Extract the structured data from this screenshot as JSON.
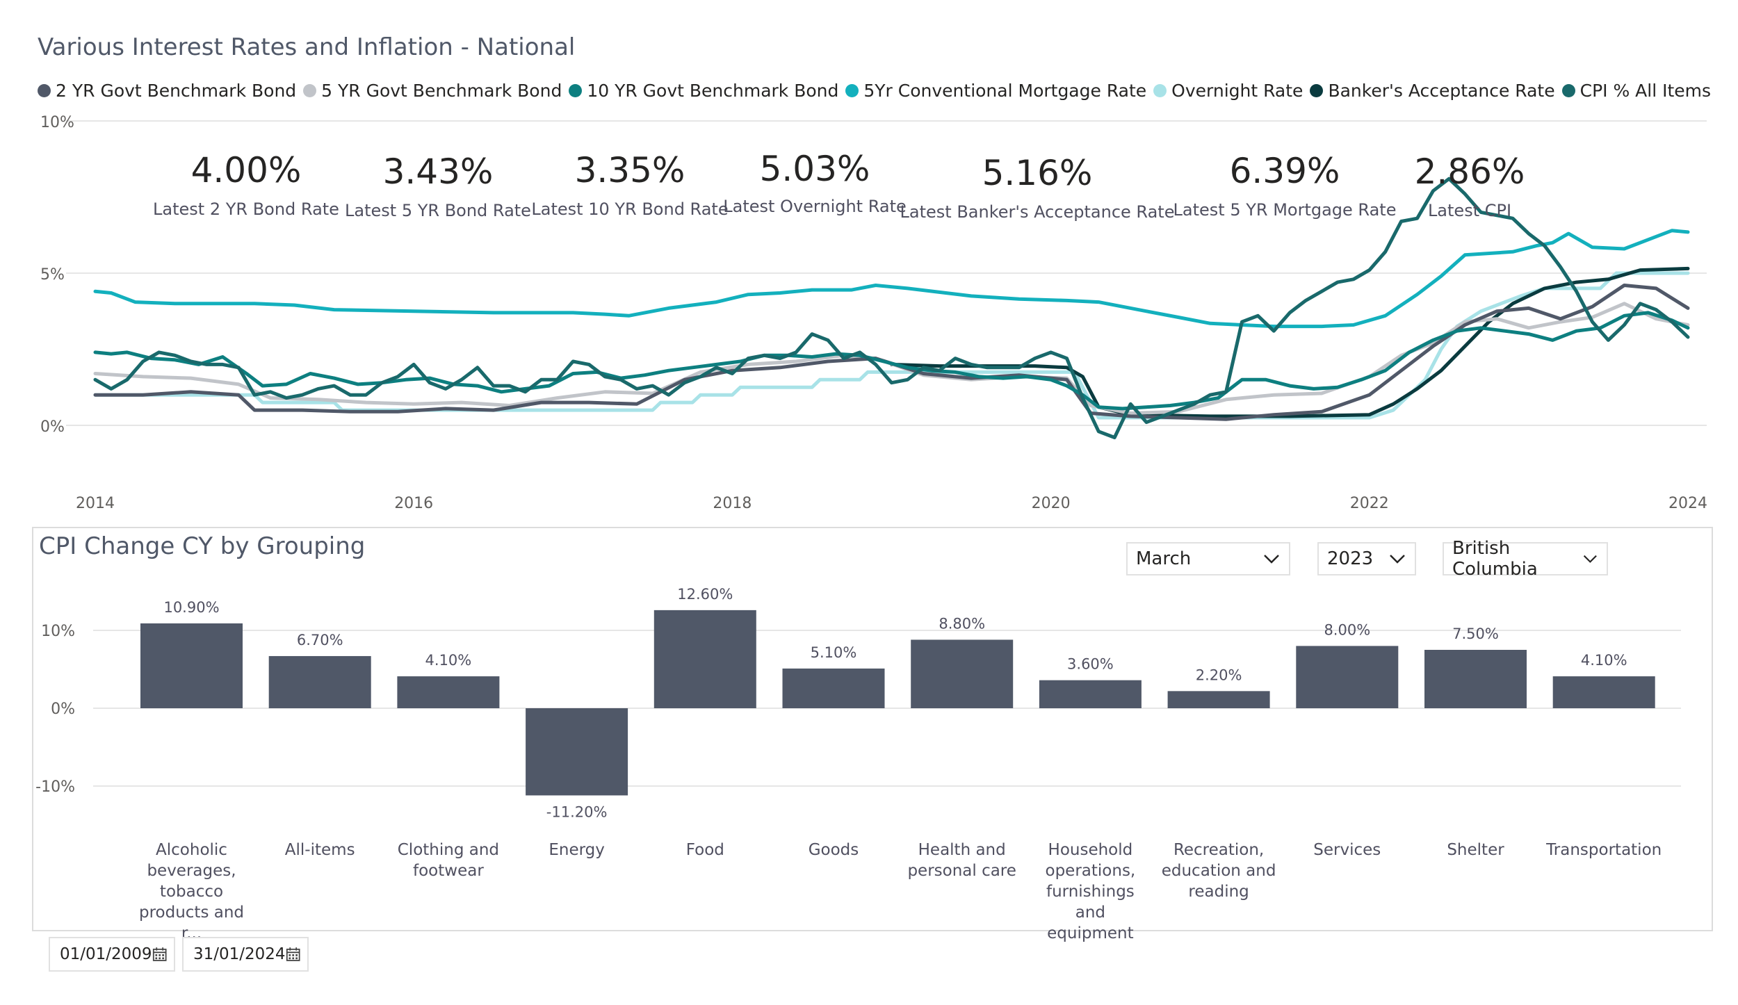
{
  "top_title": "Various Interest Rates and Inflation - National",
  "legend": [
    {
      "name": "2 YR Govt Benchmark Bond",
      "color": "#505868"
    },
    {
      "name": "5 YR Govt Benchmark Bond",
      "color": "#c1c4c9"
    },
    {
      "name": "10 YR Govt Benchmark Bond",
      "color": "#0d7f80"
    },
    {
      "name": "5Yr Conventional Mortgage Rate",
      "color": "#13b0bd"
    },
    {
      "name": "Overnight Rate",
      "color": "#a8e2e7"
    },
    {
      "name": "Banker's Acceptance Rate",
      "color": "#0a3b3f"
    },
    {
      "name": "CPI % All Items",
      "color": "#19696b"
    }
  ],
  "cards": [
    {
      "value": "4.00%",
      "label": "Latest 2 YR Bond Rate"
    },
    {
      "value": "3.43%",
      "label": "Latest 5 YR Bond Rate"
    },
    {
      "value": "3.35%",
      "label": "Latest 10 YR Bond Rate"
    },
    {
      "value": "5.03%",
      "label": "Latest Overnight Rate"
    },
    {
      "value": "5.16%",
      "label": "Latest Banker's Acceptance Rate"
    },
    {
      "value": "6.39%",
      "label": "Latest 5 YR Mortgage Rate"
    },
    {
      "value": "2.86%",
      "label": "Latest CPI"
    }
  ],
  "filters": {
    "month": "March",
    "year": "2023",
    "region": "British Columbia"
  },
  "date_range": {
    "start": "01/01/2009",
    "end": "31/01/2024"
  },
  "bottom_title": "CPI Change CY by Grouping",
  "chart_data": [
    {
      "type": "line",
      "title": "Various Interest Rates and Inflation - National",
      "x_ticks": [
        "2014",
        "2016",
        "2018",
        "2020",
        "2022",
        "2024"
      ],
      "y_ticks": [
        "0%",
        "5%",
        "10%"
      ],
      "ylim": [
        0,
        10
      ],
      "xlim": [
        2014.0,
        2024.0
      ],
      "grid": true,
      "legend_position": "top-left",
      "series": [
        {
          "name": "5Yr Conventional Mortgage Rate",
          "color": "#13b0bd",
          "width": 5,
          "x": [
            2014.0,
            2014.1,
            2014.25,
            2014.5,
            2014.75,
            2015.0,
            2015.25,
            2015.5,
            2016.0,
            2016.5,
            2017.0,
            2017.2,
            2017.35,
            2017.6,
            2017.9,
            2018.1,
            2018.3,
            2018.5,
            2018.75,
            2018.9,
            2019.1,
            2019.5,
            2019.8,
            2020.1,
            2020.3,
            2020.45,
            2020.6,
            2020.8,
            2021.0,
            2021.2,
            2021.4,
            2021.7,
            2021.9,
            2022.1,
            2022.3,
            2022.45,
            2022.6,
            2022.9,
            2023.05,
            2023.15,
            2023.25,
            2023.4,
            2023.6,
            2023.8,
            2023.9,
            2024.0
          ],
          "y": [
            4.4,
            4.35,
            4.05,
            4.0,
            4.0,
            4.0,
            3.95,
            3.8,
            3.75,
            3.7,
            3.7,
            3.65,
            3.6,
            3.85,
            4.05,
            4.3,
            4.35,
            4.45,
            4.45,
            4.6,
            4.5,
            4.25,
            4.15,
            4.1,
            4.05,
            3.9,
            3.75,
            3.55,
            3.35,
            3.3,
            3.25,
            3.25,
            3.3,
            3.6,
            4.3,
            4.9,
            5.6,
            5.7,
            5.9,
            6.0,
            6.3,
            5.85,
            5.8,
            6.2,
            6.4,
            6.35
          ]
        },
        {
          "name": "Overnight Rate",
          "color": "#a8e2e7",
          "width": 5,
          "x": [
            2014.0,
            2015.0,
            2015.05,
            2015.5,
            2015.55,
            2016.0,
            2017.0,
            2017.5,
            2017.55,
            2017.75,
            2017.8,
            2018.0,
            2018.05,
            2018.5,
            2018.55,
            2018.8,
            2018.85,
            2020.15,
            2020.2,
            2020.25,
            2020.3,
            2021.0,
            2022.0,
            2022.15,
            2022.25,
            2022.35,
            2022.45,
            2022.55,
            2022.7,
            2022.95,
            2023.1,
            2023.45,
            2023.55,
            2024.0
          ],
          "y": [
            1.0,
            1.0,
            0.75,
            0.75,
            0.5,
            0.5,
            0.5,
            0.5,
            0.75,
            0.75,
            1.0,
            1.0,
            1.25,
            1.25,
            1.5,
            1.5,
            1.75,
            1.75,
            1.25,
            0.75,
            0.25,
            0.25,
            0.25,
            0.5,
            1.0,
            1.5,
            2.5,
            3.25,
            3.75,
            4.25,
            4.5,
            4.5,
            5.0,
            5.0
          ]
        },
        {
          "name": "Banker's Acceptance Rate",
          "color": "#0a3b3f",
          "width": 5,
          "x": [
            2019.0,
            2019.3,
            2019.6,
            2019.9,
            2020.1,
            2020.2,
            2020.3,
            2020.5,
            2021.0,
            2021.5,
            2022.0,
            2022.15,
            2022.3,
            2022.45,
            2022.6,
            2022.75,
            2022.9,
            2023.1,
            2023.3,
            2023.5,
            2023.7,
            2024.0
          ],
          "y": [
            2.0,
            1.95,
            1.95,
            1.95,
            1.9,
            1.6,
            0.6,
            0.35,
            0.3,
            0.3,
            0.35,
            0.7,
            1.2,
            1.8,
            2.6,
            3.4,
            4.0,
            4.5,
            4.7,
            4.8,
            5.1,
            5.15
          ]
        },
        {
          "name": "5 YR Govt Benchmark Bond",
          "color": "#c1c4c9",
          "width": 5,
          "x": [
            2014.0,
            2014.3,
            2014.6,
            2014.9,
            2015.1,
            2015.4,
            2015.7,
            2016.0,
            2016.3,
            2016.6,
            2016.9,
            2017.2,
            2017.5,
            2017.8,
            2018.1,
            2018.4,
            2018.7,
            2018.9,
            2019.2,
            2019.5,
            2019.8,
            2020.1,
            2020.25,
            2020.5,
            2020.8,
            2021.1,
            2021.4,
            2021.7,
            2022.0,
            2022.2,
            2022.4,
            2022.6,
            2022.8,
            2023.0,
            2023.2,
            2023.4,
            2023.6,
            2023.8,
            2024.0
          ],
          "y": [
            1.7,
            1.6,
            1.55,
            1.35,
            0.9,
            0.85,
            0.75,
            0.7,
            0.75,
            0.65,
            0.9,
            1.1,
            1.05,
            1.75,
            2.0,
            2.1,
            2.3,
            2.2,
            1.65,
            1.5,
            1.6,
            1.55,
            0.65,
            0.4,
            0.45,
            0.85,
            1.0,
            1.05,
            1.6,
            2.3,
            2.7,
            3.4,
            3.5,
            3.2,
            3.4,
            3.55,
            4.0,
            3.5,
            3.3
          ]
        },
        {
          "name": "2 YR Govt Benchmark Bond",
          "color": "#505868",
          "width": 5,
          "x": [
            2014.0,
            2014.3,
            2014.6,
            2014.9,
            2015.0,
            2015.3,
            2015.6,
            2015.9,
            2016.2,
            2016.5,
            2016.8,
            2017.1,
            2017.4,
            2017.7,
            2018.0,
            2018.3,
            2018.6,
            2018.9,
            2019.2,
            2019.5,
            2019.8,
            2020.1,
            2020.25,
            2020.5,
            2020.8,
            2021.1,
            2021.4,
            2021.7,
            2022.0,
            2022.2,
            2022.4,
            2022.6,
            2022.8,
            2023.0,
            2023.2,
            2023.4,
            2023.6,
            2023.8,
            2024.0
          ],
          "y": [
            1.0,
            1.0,
            1.1,
            1.0,
            0.5,
            0.5,
            0.45,
            0.45,
            0.55,
            0.5,
            0.75,
            0.75,
            0.7,
            1.5,
            1.8,
            1.9,
            2.1,
            2.2,
            1.7,
            1.55,
            1.65,
            1.5,
            0.4,
            0.3,
            0.25,
            0.2,
            0.35,
            0.45,
            1.0,
            1.8,
            2.6,
            3.3,
            3.75,
            3.85,
            3.5,
            3.9,
            4.6,
            4.5,
            3.85
          ]
        },
        {
          "name": "10 YR Govt Benchmark Bond",
          "color": "#0d7f80",
          "width": 5,
          "x": [
            2014.0,
            2014.1,
            2014.2,
            2014.35,
            2014.5,
            2014.65,
            2014.8,
            2014.95,
            2015.05,
            2015.2,
            2015.35,
            2015.5,
            2015.65,
            2015.8,
            2015.95,
            2016.1,
            2016.25,
            2016.4,
            2016.55,
            2016.7,
            2016.85,
            2017.0,
            2017.15,
            2017.3,
            2017.45,
            2017.6,
            2017.75,
            2017.9,
            2018.05,
            2018.2,
            2018.35,
            2018.5,
            2018.65,
            2018.8,
            2018.95,
            2019.1,
            2019.25,
            2019.4,
            2019.55,
            2019.7,
            2019.85,
            2020.0,
            2020.1,
            2020.2,
            2020.3,
            2020.45,
            2020.6,
            2020.75,
            2020.9,
            2021.05,
            2021.2,
            2021.35,
            2021.5,
            2021.65,
            2021.8,
            2021.95,
            2022.1,
            2022.25,
            2022.4,
            2022.55,
            2022.7,
            2022.85,
            2023.0,
            2023.15,
            2023.3,
            2023.45,
            2023.6,
            2023.75,
            2023.9,
            2024.0
          ],
          "y": [
            2.4,
            2.35,
            2.4,
            2.2,
            2.15,
            2.0,
            2.25,
            1.7,
            1.3,
            1.35,
            1.7,
            1.55,
            1.35,
            1.4,
            1.5,
            1.55,
            1.35,
            1.3,
            1.1,
            1.2,
            1.3,
            1.7,
            1.75,
            1.55,
            1.65,
            1.8,
            1.9,
            2.0,
            2.1,
            2.3,
            2.3,
            2.25,
            2.35,
            2.3,
            2.1,
            1.9,
            1.8,
            1.75,
            1.6,
            1.55,
            1.6,
            1.5,
            1.3,
            1.0,
            0.6,
            0.55,
            0.6,
            0.65,
            0.75,
            0.9,
            1.5,
            1.5,
            1.3,
            1.2,
            1.25,
            1.5,
            1.8,
            2.4,
            2.8,
            3.1,
            3.2,
            3.1,
            3.0,
            2.8,
            3.1,
            3.2,
            3.6,
            3.7,
            3.45,
            3.2
          ]
        },
        {
          "name": "CPI % All Items",
          "color": "#19696b",
          "width": 5,
          "x": [
            2014.0,
            2014.1,
            2014.2,
            2014.3,
            2014.4,
            2014.5,
            2014.6,
            2014.7,
            2014.8,
            2014.9,
            2015.0,
            2015.1,
            2015.2,
            2015.3,
            2015.4,
            2015.5,
            2015.6,
            2015.7,
            2015.8,
            2015.9,
            2016.0,
            2016.1,
            2016.2,
            2016.3,
            2016.4,
            2016.5,
            2016.6,
            2016.7,
            2016.8,
            2016.9,
            2017.0,
            2017.1,
            2017.2,
            2017.3,
            2017.4,
            2017.5,
            2017.6,
            2017.7,
            2017.8,
            2017.9,
            2018.0,
            2018.1,
            2018.2,
            2018.3,
            2018.4,
            2018.5,
            2018.6,
            2018.7,
            2018.8,
            2018.9,
            2019.0,
            2019.1,
            2019.2,
            2019.3,
            2019.4,
            2019.5,
            2019.6,
            2019.7,
            2019.8,
            2019.9,
            2020.0,
            2020.1,
            2020.2,
            2020.3,
            2020.4,
            2020.5,
            2020.6,
            2020.7,
            2020.8,
            2020.9,
            2021.0,
            2021.1,
            2021.2,
            2021.3,
            2021.4,
            2021.5,
            2021.6,
            2021.7,
            2021.8,
            2021.9,
            2022.0,
            2022.1,
            2022.2,
            2022.3,
            2022.4,
            2022.5,
            2022.6,
            2022.7,
            2022.8,
            2022.9,
            2023.0,
            2023.1,
            2023.2,
            2023.3,
            2023.4,
            2023.5,
            2023.6,
            2023.7,
            2023.8,
            2023.9,
            2024.0
          ],
          "y": [
            1.5,
            1.2,
            1.5,
            2.1,
            2.4,
            2.3,
            2.1,
            2.0,
            2.0,
            1.9,
            1.0,
            1.1,
            0.9,
            1.0,
            1.2,
            1.3,
            1.0,
            1.0,
            1.4,
            1.6,
            2.0,
            1.4,
            1.2,
            1.5,
            1.9,
            1.3,
            1.3,
            1.1,
            1.5,
            1.5,
            2.1,
            2.0,
            1.6,
            1.5,
            1.2,
            1.3,
            1.0,
            1.4,
            1.6,
            1.9,
            1.7,
            2.2,
            2.3,
            2.2,
            2.4,
            3.0,
            2.8,
            2.2,
            2.4,
            2.0,
            1.4,
            1.5,
            1.9,
            1.8,
            2.2,
            2.0,
            1.9,
            1.9,
            1.9,
            2.2,
            2.4,
            2.2,
            0.9,
            -0.2,
            -0.4,
            0.7,
            0.1,
            0.3,
            0.5,
            0.7,
            1.0,
            1.1,
            3.4,
            3.6,
            3.1,
            3.7,
            4.1,
            4.4,
            4.7,
            4.8,
            5.1,
            5.7,
            6.7,
            6.8,
            7.7,
            8.1,
            7.6,
            7.0,
            6.9,
            6.8,
            6.3,
            5.9,
            5.2,
            4.4,
            3.4,
            2.8,
            3.3,
            4.0,
            3.8,
            3.4,
            2.9
          ]
        }
      ]
    },
    {
      "type": "bar",
      "title": "CPI Change CY by Grouping",
      "categories": [
        "Alcoholic beverages, tobacco products and r...",
        "All-items",
        "Clothing and footwear",
        "Energy",
        "Food",
        "Goods",
        "Health and personal care",
        "Household operations, furnishings and equipment",
        "Recreation, education and reading",
        "Services",
        "Shelter",
        "Transportation"
      ],
      "values": [
        10.9,
        6.7,
        4.1,
        -11.2,
        12.6,
        5.1,
        8.8,
        3.6,
        2.2,
        8.0,
        7.5,
        4.1
      ],
      "data_labels": [
        "10.90%",
        "6.70%",
        "4.10%",
        "-11.20%",
        "12.60%",
        "5.10%",
        "8.80%",
        "3.60%",
        "2.20%",
        "8.00%",
        "7.50%",
        "4.10%"
      ],
      "y_ticks": [
        "10%",
        "0%",
        "-10%"
      ],
      "ylim": [
        -15,
        15
      ],
      "grid": true,
      "bar_color": "#505868"
    }
  ]
}
